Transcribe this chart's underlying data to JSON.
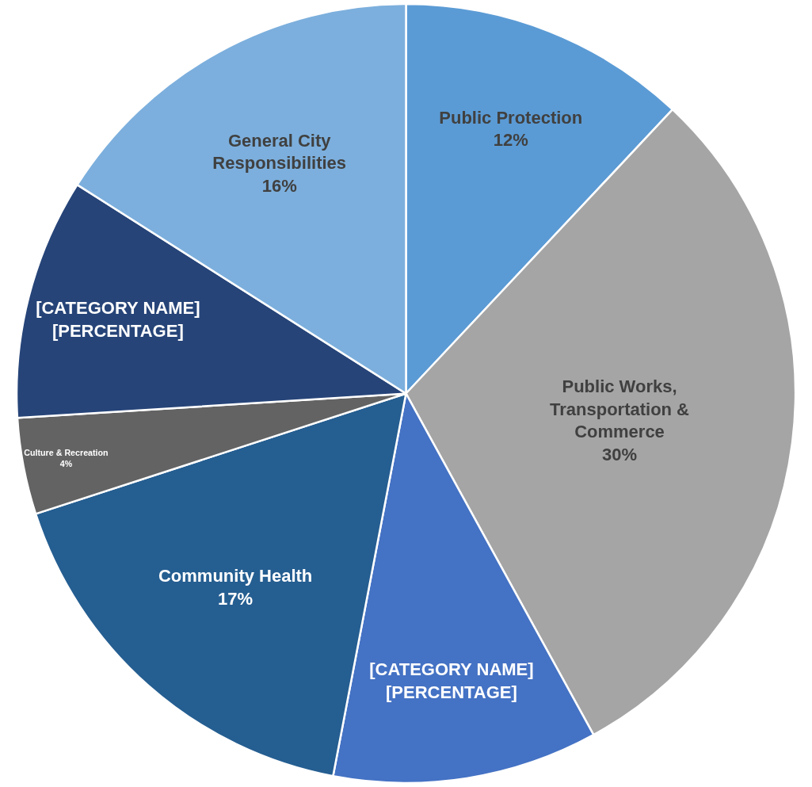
{
  "chart_data": {
    "type": "pie",
    "categories": [
      "Public Protection",
      "Public Works, Transportation & Commerce",
      "[CATEGORY NAME]",
      "Community Health",
      "Culture & Recreation",
      "[CATEGORY NAME]",
      "General City Responsibilities"
    ],
    "values": [
      12,
      30,
      11,
      17,
      4,
      10,
      16
    ],
    "value_labels": [
      "12%",
      "30%",
      "[PERCENTAGE]",
      "17%",
      "4%",
      "[PERCENTAGE]",
      "16%"
    ],
    "colors": [
      "#5b9bd5",
      "#a5a5a5",
      "#4472c4",
      "#255e91",
      "#636363",
      "#264478",
      "#7cafdd"
    ]
  }
}
